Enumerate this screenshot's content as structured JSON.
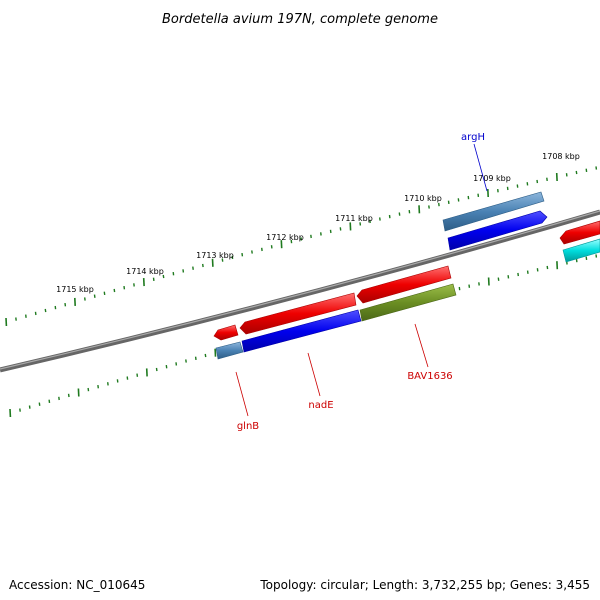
{
  "title": "Bordetella avium 197N, complete genome",
  "tick_labels": [
    "1715 kbp",
    "1714 kbp",
    "1713 kbp",
    "1712 kbp",
    "1711 kbp",
    "1710 kbp",
    "1709 kbp",
    "1708 kbp"
  ],
  "genes": {
    "argH": {
      "label": "argH",
      "color": "#0000cc"
    },
    "glnB": {
      "label": "glnB",
      "color": "#cc0000"
    },
    "nadE": {
      "label": "nadE",
      "color": "#cc0000"
    },
    "bav1636": {
      "label": "BAV1636",
      "color": "#cc0000"
    }
  },
  "colors": {
    "backbone": "#777777",
    "ticks": "#1f7a1f",
    "red_feature": "#ee0000",
    "blue_feature": "#0000ee",
    "steel_feature": "#4a82b4",
    "olive_feature": "#6b8e23",
    "cyan_feature": "#00dddd"
  },
  "footer": {
    "accession": "Accession: NC_010645",
    "topology": "Topology: circular; Length: 3,732,255 bp; Genes: 3,455"
  }
}
